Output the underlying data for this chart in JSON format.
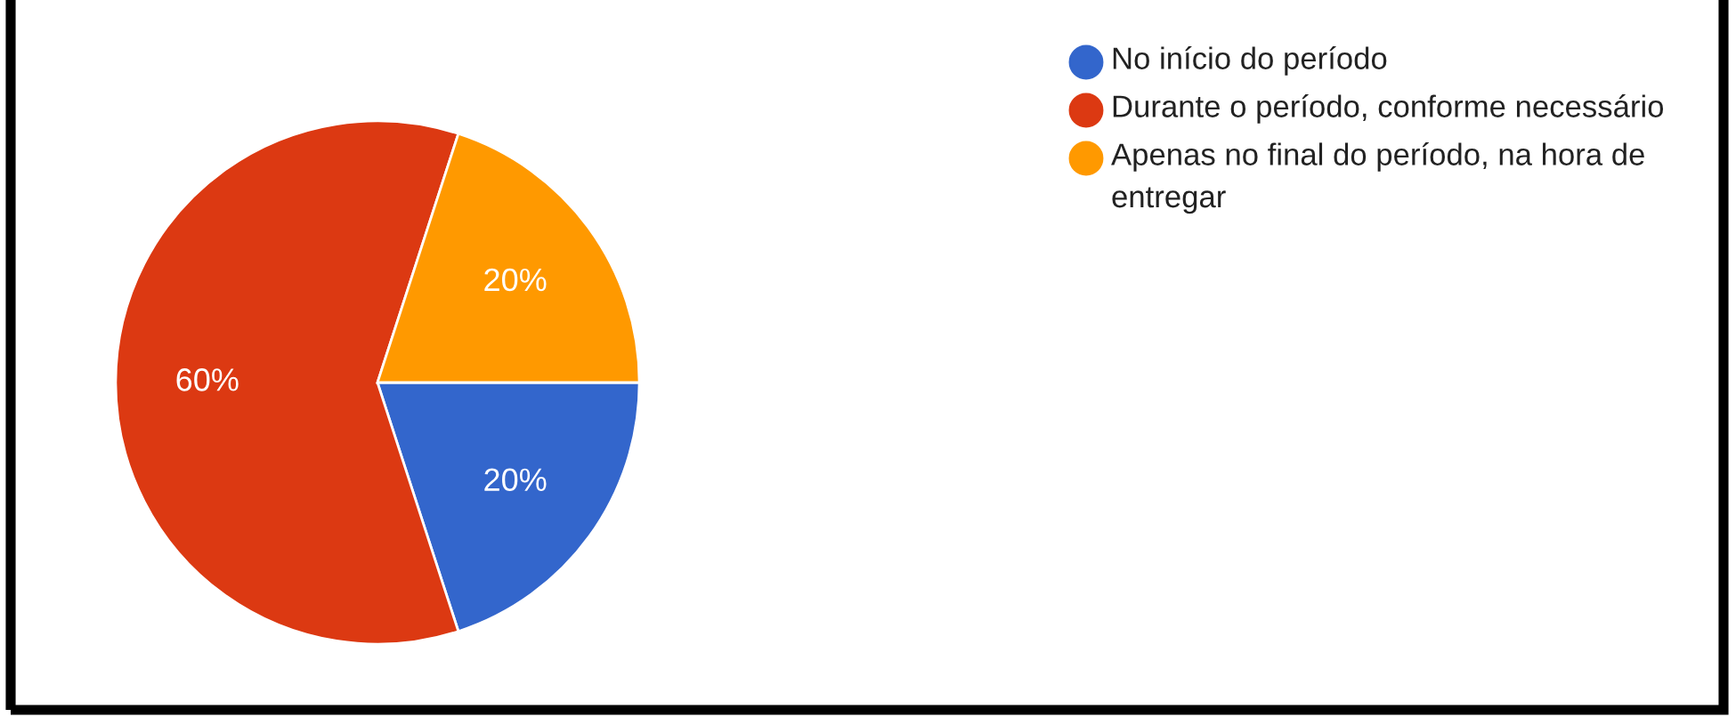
{
  "chart_data": {
    "type": "pie",
    "categories": [
      "No início do período",
      "Durante o período, conforme necessário",
      "Apenas no final do período, na hora de entregar"
    ],
    "values": [
      20,
      60,
      20
    ],
    "colors": [
      "#3366cc",
      "#dc3912",
      "#ff9900"
    ],
    "value_labels": [
      "20%",
      "60%",
      "20%"
    ],
    "legend": "right"
  }
}
